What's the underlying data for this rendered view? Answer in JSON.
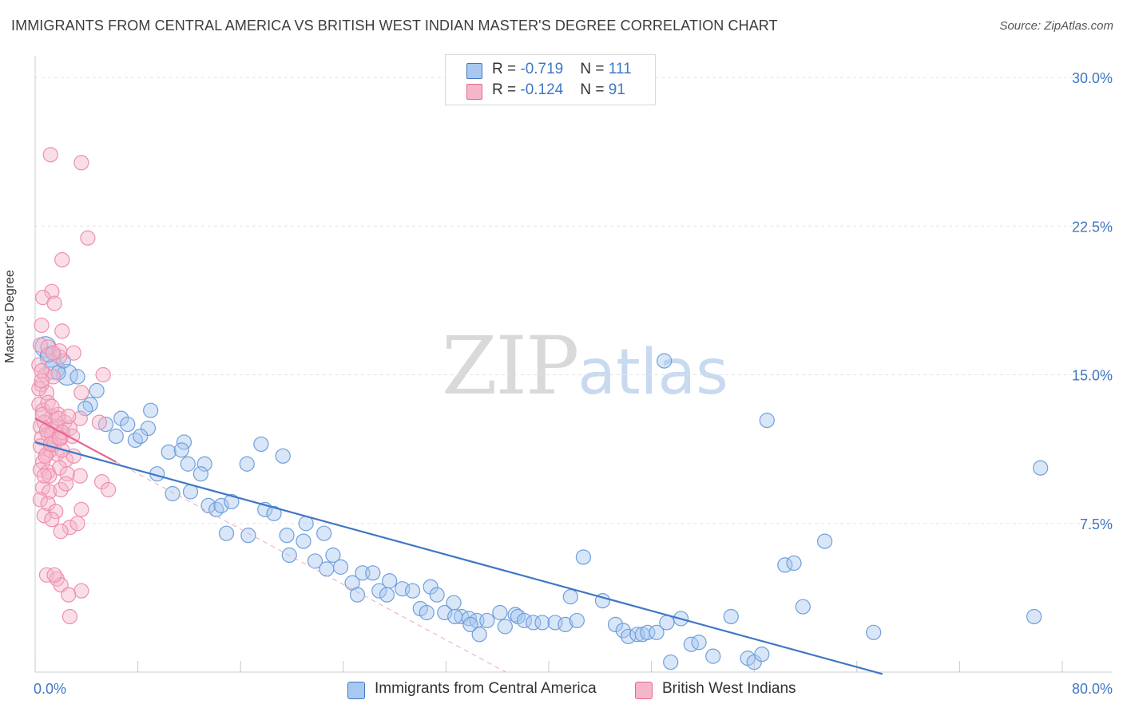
{
  "title": "IMMIGRANTS FROM CENTRAL AMERICA VS BRITISH WEST INDIAN MASTER'S DEGREE CORRELATION CHART",
  "source": "Source: ZipAtlas.com",
  "watermark": {
    "zip": "ZIP",
    "atlas": "atlas"
  },
  "legend": {
    "row1": {
      "r_label": "R = ",
      "r_value": "-0.719",
      "n_label": "N = ",
      "n_value": "111"
    },
    "row2": {
      "r_label": "R = ",
      "r_value": "-0.124",
      "n_label": "N = ",
      "n_value": "91"
    }
  },
  "colors": {
    "blue": "#3f77c4",
    "blue_fill": "#a9c8ef",
    "pink": "#e8668f",
    "pink_fill": "#f5b6ca"
  },
  "chart_data": {
    "type": "scatter",
    "title": "IMMIGRANTS FROM CENTRAL AMERICA VS BRITISH WEST INDIAN MASTER'S DEGREE CORRELATION CHART",
    "xlabel": "",
    "ylabel": "Master's Degree",
    "xlim": [
      0,
      80
    ],
    "ylim": [
      0,
      30
    ],
    "x_tick_labels": [
      "0.0%",
      "80.0%"
    ],
    "y_ticks": [
      7.5,
      15.0,
      22.5,
      30.0
    ],
    "y_tick_labels": [
      "7.5%",
      "15.0%",
      "22.5%",
      "30.0%"
    ],
    "grid": true,
    "legend_position": "top-center",
    "series": [
      {
        "name": "Immigrants from Central America",
        "color": "#3f77c4",
        "trend": {
          "x": [
            0,
            66
          ],
          "y": [
            11.6,
            -0.1
          ]
        },
        "points": [
          [
            0.8,
            16.4
          ],
          [
            1.2,
            15.9
          ],
          [
            1.5,
            15.3
          ],
          [
            2.5,
            15.0
          ],
          [
            3.3,
            14.9
          ],
          [
            1.8,
            15.1
          ],
          [
            4.3,
            13.5
          ],
          [
            4.8,
            14.2
          ],
          [
            3.9,
            13.3
          ],
          [
            5.5,
            12.5
          ],
          [
            6.7,
            12.8
          ],
          [
            6.3,
            11.9
          ],
          [
            7.2,
            12.5
          ],
          [
            7.8,
            11.7
          ],
          [
            8.8,
            12.3
          ],
          [
            9.0,
            13.2
          ],
          [
            8.2,
            11.9
          ],
          [
            10.4,
            11.1
          ],
          [
            11.6,
            11.6
          ],
          [
            11.4,
            11.2
          ],
          [
            9.5,
            10.0
          ],
          [
            11.9,
            10.5
          ],
          [
            13.2,
            10.5
          ],
          [
            12.9,
            10.0
          ],
          [
            10.7,
            9.0
          ],
          [
            12.1,
            9.1
          ],
          [
            13.5,
            8.4
          ],
          [
            14.1,
            8.2
          ],
          [
            14.5,
            8.4
          ],
          [
            15.3,
            8.6
          ],
          [
            17.6,
            11.5
          ],
          [
            16.5,
            10.5
          ],
          [
            19.3,
            10.9
          ],
          [
            17.9,
            8.2
          ],
          [
            18.6,
            8.0
          ],
          [
            14.9,
            7.0
          ],
          [
            16.6,
            6.9
          ],
          [
            19.6,
            6.9
          ],
          [
            21.1,
            7.5
          ],
          [
            20.9,
            6.6
          ],
          [
            22.5,
            7.0
          ],
          [
            19.8,
            5.9
          ],
          [
            21.8,
            5.6
          ],
          [
            23.2,
            5.9
          ],
          [
            22.7,
            5.2
          ],
          [
            23.8,
            5.3
          ],
          [
            24.7,
            4.5
          ],
          [
            25.5,
            5.0
          ],
          [
            26.3,
            5.0
          ],
          [
            25.1,
            3.9
          ],
          [
            26.8,
            4.1
          ],
          [
            27.4,
            3.9
          ],
          [
            27.6,
            4.6
          ],
          [
            28.6,
            4.2
          ],
          [
            29.4,
            4.1
          ],
          [
            30.8,
            4.3
          ],
          [
            31.3,
            3.9
          ],
          [
            30.0,
            3.2
          ],
          [
            30.5,
            3.0
          ],
          [
            31.9,
            3.0
          ],
          [
            32.6,
            3.5
          ],
          [
            33.2,
            2.8
          ],
          [
            32.7,
            2.8
          ],
          [
            33.8,
            2.7
          ],
          [
            34.4,
            2.6
          ],
          [
            33.9,
            2.4
          ],
          [
            35.2,
            2.6
          ],
          [
            36.2,
            3.0
          ],
          [
            37.4,
            2.9
          ],
          [
            36.6,
            2.3
          ],
          [
            37.6,
            2.8
          ],
          [
            38.1,
            2.6
          ],
          [
            38.8,
            2.5
          ],
          [
            39.5,
            2.5
          ],
          [
            40.5,
            2.5
          ],
          [
            41.3,
            2.4
          ],
          [
            42.2,
            2.6
          ],
          [
            41.7,
            3.8
          ],
          [
            42.7,
            5.8
          ],
          [
            44.2,
            3.6
          ],
          [
            45.2,
            2.4
          ],
          [
            45.8,
            2.1
          ],
          [
            46.2,
            1.8
          ],
          [
            46.9,
            1.9
          ],
          [
            47.3,
            1.9
          ],
          [
            47.7,
            2.0
          ],
          [
            48.4,
            2.0
          ],
          [
            49.2,
            2.5
          ],
          [
            49.0,
            15.7
          ],
          [
            49.5,
            0.5
          ],
          [
            50.3,
            2.7
          ],
          [
            51.1,
            1.4
          ],
          [
            51.7,
            1.5
          ],
          [
            52.8,
            0.8
          ],
          [
            54.2,
            2.8
          ],
          [
            55.5,
            0.7
          ],
          [
            56.0,
            0.5
          ],
          [
            57.0,
            12.7
          ],
          [
            58.4,
            5.4
          ],
          [
            59.1,
            5.5
          ],
          [
            59.8,
            3.3
          ],
          [
            61.5,
            6.6
          ],
          [
            65.3,
            2.0
          ],
          [
            77.8,
            2.8
          ],
          [
            78.3,
            10.3
          ],
          [
            1.0,
            16.0
          ],
          [
            2.2,
            15.7
          ],
          [
            56.6,
            0.9
          ],
          [
            34.6,
            1.9
          ]
        ]
      },
      {
        "name": "British West Indians",
        "color": "#e8668f",
        "trend": {
          "x": [
            0,
            6.3
          ],
          "y": [
            12.8,
            10.6
          ]
        },
        "points": [
          [
            1.2,
            26.1
          ],
          [
            3.6,
            25.7
          ],
          [
            4.1,
            21.9
          ],
          [
            2.1,
            20.8
          ],
          [
            1.3,
            19.2
          ],
          [
            0.6,
            18.9
          ],
          [
            1.5,
            18.6
          ],
          [
            0.5,
            17.5
          ],
          [
            2.1,
            17.2
          ],
          [
            0.4,
            16.5
          ],
          [
            1.0,
            16.4
          ],
          [
            1.9,
            15.9
          ],
          [
            3.0,
            16.1
          ],
          [
            0.3,
            15.5
          ],
          [
            0.8,
            15.0
          ],
          [
            1.4,
            14.9
          ],
          [
            0.5,
            14.5
          ],
          [
            0.9,
            14.1
          ],
          [
            3.6,
            14.1
          ],
          [
            5.3,
            15.0
          ],
          [
            0.3,
            13.5
          ],
          [
            0.6,
            13.2
          ],
          [
            1.3,
            12.9
          ],
          [
            1.8,
            13.0
          ],
          [
            3.5,
            12.8
          ],
          [
            5.0,
            12.6
          ],
          [
            0.4,
            12.4
          ],
          [
            1.4,
            12.3
          ],
          [
            2.0,
            12.0
          ],
          [
            2.3,
            12.6
          ],
          [
            2.7,
            12.3
          ],
          [
            1.0,
            12.0
          ],
          [
            0.5,
            11.8
          ],
          [
            1.5,
            11.5
          ],
          [
            2.0,
            11.8
          ],
          [
            2.9,
            11.9
          ],
          [
            1.2,
            11.2
          ],
          [
            0.9,
            11.0
          ],
          [
            1.7,
            11.0
          ],
          [
            0.6,
            10.6
          ],
          [
            2.4,
            10.7
          ],
          [
            3.0,
            10.9
          ],
          [
            0.4,
            10.2
          ],
          [
            1.0,
            10.1
          ],
          [
            1.9,
            10.3
          ],
          [
            3.5,
            9.9
          ],
          [
            5.2,
            9.6
          ],
          [
            5.7,
            9.2
          ],
          [
            0.6,
            9.3
          ],
          [
            1.1,
            9.1
          ],
          [
            2.0,
            9.2
          ],
          [
            2.5,
            10.0
          ],
          [
            0.4,
            8.7
          ],
          [
            1.0,
            8.5
          ],
          [
            1.6,
            8.1
          ],
          [
            0.7,
            7.9
          ],
          [
            1.3,
            7.7
          ],
          [
            2.7,
            7.3
          ],
          [
            3.6,
            8.2
          ],
          [
            2.0,
            7.1
          ],
          [
            3.3,
            7.5
          ],
          [
            0.9,
            4.9
          ],
          [
            1.7,
            4.7
          ],
          [
            2.0,
            4.4
          ],
          [
            1.5,
            4.9
          ],
          [
            3.6,
            4.1
          ],
          [
            2.6,
            3.9
          ],
          [
            2.7,
            2.8
          ],
          [
            1.9,
            16.2
          ],
          [
            0.3,
            14.3
          ],
          [
            0.7,
            12.6
          ],
          [
            1.3,
            12.0
          ],
          [
            2.1,
            11.2
          ],
          [
            0.8,
            10.9
          ],
          [
            1.1,
            9.9
          ],
          [
            2.4,
            9.5
          ],
          [
            0.5,
            15.2
          ],
          [
            1.0,
            13.6
          ],
          [
            1.6,
            12.4
          ],
          [
            0.4,
            11.4
          ],
          [
            2.1,
            12.1
          ],
          [
            0.7,
            9.9
          ],
          [
            1.8,
            12.8
          ],
          [
            1.2,
            11.5
          ],
          [
            2.6,
            12.9
          ],
          [
            0.6,
            13.0
          ],
          [
            1.4,
            16.1
          ],
          [
            0.5,
            14.7
          ],
          [
            1.9,
            11.8
          ],
          [
            1.3,
            13.4
          ],
          [
            0.9,
            12.2
          ]
        ]
      }
    ]
  },
  "bottom_legend": [
    "Immigrants from Central America",
    "British West Indians"
  ]
}
